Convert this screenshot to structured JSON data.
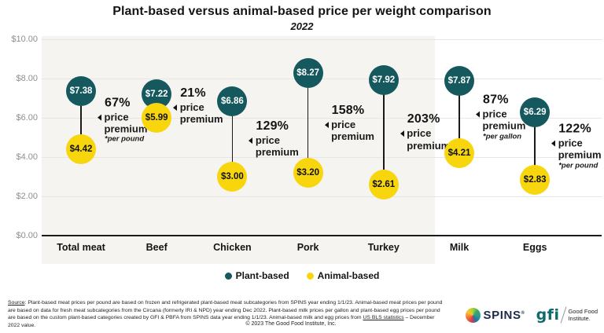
{
  "chart_data": {
    "type": "scatter",
    "variant": "dumbbell-dot-plot",
    "title": "Plant-based versus animal-based price per weight comparison",
    "subtitle": "2022",
    "categories": [
      "Total meat",
      "Beef",
      "Chicken",
      "Pork",
      "Turkey",
      "Milk",
      "Eggs"
    ],
    "series": [
      {
        "name": "Plant-based",
        "color": "#15595f",
        "values": [
          7.38,
          7.22,
          6.86,
          8.27,
          7.92,
          7.87,
          6.29
        ]
      },
      {
        "name": "Animal-based",
        "color": "#f7d60e",
        "values": [
          4.42,
          5.99,
          3.0,
          3.2,
          2.61,
          4.21,
          2.83
        ]
      }
    ],
    "value_prefix": "$",
    "premiums": [
      {
        "pct": "67%",
        "label": "price premium",
        "note": "*per pound"
      },
      {
        "pct": "21%",
        "label": "price premium",
        "note": ""
      },
      {
        "pct": "129%",
        "label": "price premium",
        "note": ""
      },
      {
        "pct": "158%",
        "label": "price premium",
        "note": ""
      },
      {
        "pct": "203%",
        "label": "price premium",
        "note": ""
      },
      {
        "pct": "87%",
        "label": "price premium",
        "note": "*per gallon"
      },
      {
        "pct": "122%",
        "label": "price premium",
        "note": "*per pound"
      }
    ],
    "y_axis": {
      "tick_labels": [
        "$10.00",
        "$8.00",
        "$6.00",
        "$4.00",
        "$2.00",
        "$0.00"
      ],
      "tick_values": [
        10,
        8,
        6,
        4,
        2,
        0
      ],
      "range": [
        0,
        10
      ],
      "grid": true
    },
    "highlight_band_categories": [
      "Total meat",
      "Beef",
      "Chicken",
      "Pork",
      "Turkey"
    ],
    "legend_position": "bottom-center"
  },
  "footer": {
    "source_label": "Source",
    "source_text_1": ": Plant-based meat prices per pound are based on frozen and refrigerated plant-based meat subcategories from SPINS year ending 1/1/23. Animal-based meat prices per pound are based on data for fresh meat subcategories from the Circana (formerly IRI & NPD) year ending Dec 2022. Plant-based milk prices per gallon and plant-based egg prices per pound are based on the custom plant-based categories created by GFI & PBFA from SPINS data year ending 1/1/23. Animal-based milk and egg prices from ",
    "source_link": "US BLS statistics",
    "source_text_2": " – December 2022 value.",
    "copyright": "© 2023 The Good Food Institute, Inc.",
    "logos": {
      "spins_word": "SPINS",
      "spins_reg": "®",
      "gfi_word": "gfi",
      "gfi_name_line1": "Good Food",
      "gfi_name_line2": "Institute."
    }
  }
}
